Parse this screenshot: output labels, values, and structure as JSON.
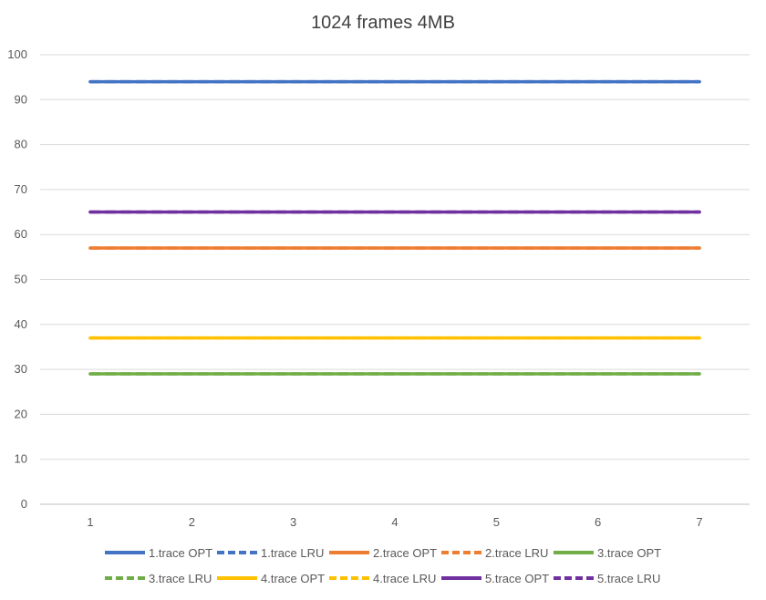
{
  "chart_data": {
    "type": "line",
    "title": "1024 frames 4MB",
    "xlabel": "",
    "ylabel": "",
    "x": [
      1,
      2,
      3,
      4,
      5,
      6,
      7
    ],
    "ylim": [
      0,
      100
    ],
    "yticks": [
      0,
      10,
      20,
      30,
      40,
      50,
      60,
      70,
      80,
      90,
      100
    ],
    "grid": true,
    "legend_position": "bottom",
    "series": [
      {
        "name": "1.trace OPT",
        "color": "#4472C4",
        "dash": false,
        "values": [
          94,
          94,
          94,
          94,
          94,
          94,
          94
        ]
      },
      {
        "name": "1.trace LRU",
        "color": "#4472C4",
        "dash": true,
        "values": [
          94,
          94,
          94,
          94,
          94,
          94,
          94
        ]
      },
      {
        "name": "2.trace OPT",
        "color": "#ED7D31",
        "dash": false,
        "values": [
          57,
          57,
          57,
          57,
          57,
          57,
          57
        ]
      },
      {
        "name": "2.trace LRU",
        "color": "#ED7D31",
        "dash": true,
        "values": [
          57,
          57,
          57,
          57,
          57,
          57,
          57
        ]
      },
      {
        "name": "3.trace OPT",
        "color": "#70AD47",
        "dash": false,
        "values": [
          29,
          29,
          29,
          29,
          29,
          29,
          29
        ]
      },
      {
        "name": "3.trace LRU",
        "color": "#70AD47",
        "dash": true,
        "values": [
          29,
          29,
          29,
          29,
          29,
          29,
          29
        ]
      },
      {
        "name": "4.trace OPT",
        "color": "#FFC000",
        "dash": false,
        "values": [
          37,
          37,
          37,
          37,
          37,
          37,
          37
        ]
      },
      {
        "name": "4.trace LRU",
        "color": "#FFC000",
        "dash": true,
        "values": [
          37,
          37,
          37,
          37,
          37,
          37,
          37
        ]
      },
      {
        "name": "5.trace OPT",
        "color": "#7030A0",
        "dash": false,
        "values": [
          65,
          65,
          65,
          65,
          65,
          65,
          65
        ]
      },
      {
        "name": "5.trace LRU",
        "color": "#7030A0",
        "dash": true,
        "values": [
          65,
          65,
          65,
          65,
          65,
          65,
          65
        ]
      }
    ]
  }
}
